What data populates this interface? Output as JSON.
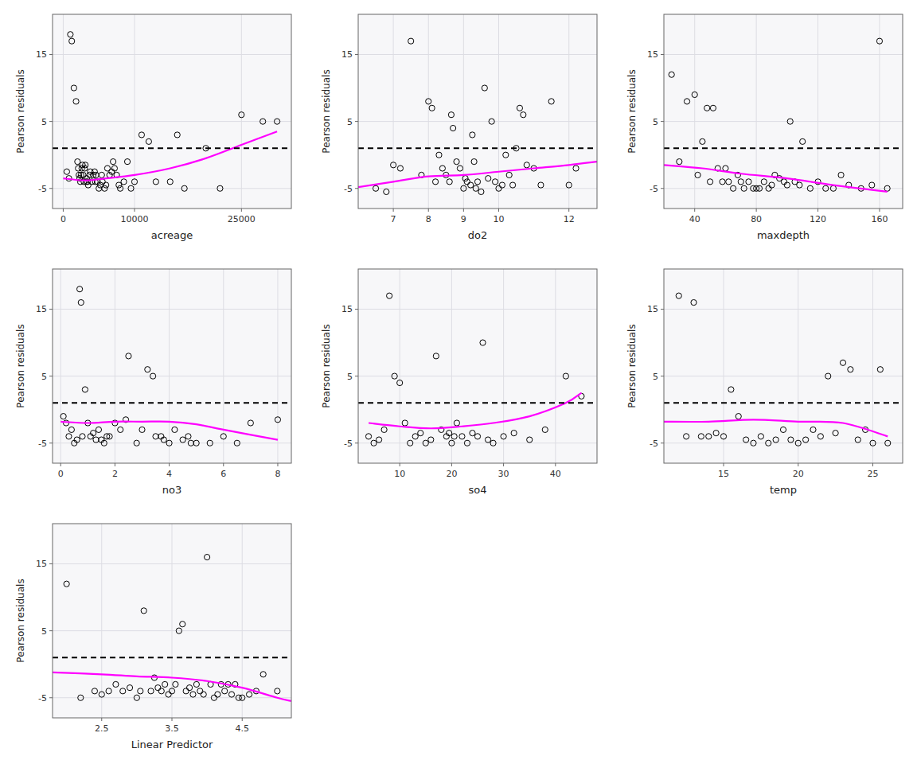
{
  "chart_data": [
    {
      "type": "scatter",
      "xlabel": "acreage",
      "ylabel": "Pearson residuals",
      "xlim": [
        -1500,
        32000
      ],
      "ylim": [
        -8,
        21
      ],
      "xticks": [
        0,
        10000,
        25000
      ],
      "yticks": [
        -5,
        5,
        15
      ],
      "grid": true,
      "series": [
        {
          "type": "scatter",
          "marker": "circle-open",
          "color": "black",
          "x": [
            500,
            800,
            1000,
            1200,
            1500,
            1800,
            2000,
            2100,
            2200,
            2300,
            2400,
            2500,
            2600,
            2700,
            2800,
            2900,
            3000,
            3100,
            3200,
            3300,
            3400,
            3500,
            3700,
            3800,
            4000,
            4200,
            4400,
            4500,
            4600,
            4800,
            5000,
            5200,
            5400,
            5500,
            5800,
            6000,
            6200,
            6500,
            6800,
            7000,
            7200,
            7500,
            7800,
            8000,
            8500,
            9000,
            9500,
            10000,
            11000,
            12000,
            13000,
            15000,
            16000,
            17000,
            20000,
            22000,
            25000,
            28000,
            30000
          ],
          "values": [
            -2.5,
            -3.5,
            18,
            17,
            10,
            8,
            -1,
            -2,
            -3,
            -3.5,
            -4,
            -3,
            -2,
            -1.5,
            -3,
            -4,
            -2,
            -1.5,
            -4,
            -3.5,
            -4,
            -4.5,
            -3,
            -2.5,
            -4,
            -3,
            -2.5,
            -4,
            -3,
            -4,
            -5,
            -4.5,
            -3,
            -4,
            -5,
            -4.5,
            -2,
            -3,
            -2.5,
            -1,
            -2,
            -3,
            -4.5,
            -5,
            -4,
            -1,
            -5,
            -4,
            3,
            2,
            -4,
            -4,
            3,
            -5,
            1,
            -5,
            6,
            5,
            5
          ]
        },
        {
          "type": "line",
          "line_style": "solid",
          "color": "#FF00FF",
          "x": [
            0,
            3000,
            6000,
            10000,
            15000,
            20000,
            25000,
            30000
          ],
          "values": [
            -3.5,
            -3.8,
            -3.5,
            -3.0,
            -2.0,
            -0.5,
            1.5,
            3.5
          ]
        },
        {
          "type": "hline",
          "line_style": "dashed",
          "color": "black",
          "values": [
            1.0
          ]
        }
      ]
    },
    {
      "type": "scatter",
      "xlabel": "do2",
      "ylabel": "Pearson residuals",
      "xlim": [
        6.0,
        12.8
      ],
      "ylim": [
        -8,
        21
      ],
      "xticks": [
        7,
        8,
        9,
        10,
        12
      ],
      "yticks": [
        -5,
        5,
        15
      ],
      "grid": true,
      "series": [
        {
          "type": "scatter",
          "marker": "circle-open",
          "color": "black",
          "x": [
            6.5,
            6.8,
            7.0,
            7.2,
            7.5,
            7.8,
            8.0,
            8.1,
            8.2,
            8.3,
            8.4,
            8.5,
            8.6,
            8.65,
            8.7,
            8.8,
            8.9,
            9.0,
            9.05,
            9.1,
            9.2,
            9.25,
            9.3,
            9.35,
            9.4,
            9.5,
            9.6,
            9.7,
            9.8,
            9.9,
            10.0,
            10.1,
            10.2,
            10.3,
            10.4,
            10.5,
            10.6,
            10.7,
            10.8,
            11.0,
            11.2,
            11.5,
            12.0,
            12.2
          ],
          "values": [
            -5,
            -5.5,
            -1.5,
            -2,
            17,
            -3,
            8,
            7,
            -4,
            0,
            -2,
            -3,
            -4,
            6,
            4,
            -1,
            -2,
            -5,
            -3.5,
            -4,
            -4.5,
            3,
            -1,
            -5,
            -4,
            -5.5,
            10,
            -3.5,
            5,
            -4,
            -5,
            -4.5,
            0,
            -3,
            -4.5,
            1,
            7,
            6,
            -1.5,
            -2,
            -4.5,
            8,
            -4.5,
            -2
          ]
        },
        {
          "type": "line",
          "line_style": "solid",
          "color": "#FF00FF",
          "x": [
            6.0,
            7.0,
            8.0,
            9.0,
            10.0,
            11.0,
            12.0,
            12.8
          ],
          "values": [
            -4.8,
            -4.0,
            -3.2,
            -3.0,
            -2.5,
            -2.0,
            -1.5,
            -1.0
          ]
        },
        {
          "type": "hline",
          "line_style": "dashed",
          "color": "black",
          "values": [
            1.0
          ]
        }
      ]
    },
    {
      "type": "scatter",
      "xlabel": "maxdepth",
      "ylabel": "Pearson residuals",
      "xlim": [
        20,
        175
      ],
      "ylim": [
        -8,
        21
      ],
      "xticks": [
        40,
        80,
        120,
        160
      ],
      "yticks": [
        -5,
        5,
        15
      ],
      "grid": true,
      "series": [
        {
          "type": "scatter",
          "marker": "circle-open",
          "color": "black",
          "x": [
            25,
            30,
            35,
            40,
            42,
            45,
            48,
            50,
            52,
            55,
            58,
            60,
            62,
            65,
            68,
            70,
            72,
            75,
            78,
            80,
            82,
            85,
            88,
            90,
            92,
            95,
            98,
            100,
            102,
            105,
            108,
            110,
            115,
            120,
            125,
            130,
            135,
            140,
            148,
            155,
            160,
            165
          ],
          "values": [
            12,
            -1,
            8,
            9,
            -3,
            2,
            7,
            -4,
            7,
            -2,
            -4,
            -2,
            -4,
            -5,
            -3,
            -4,
            -5,
            -4,
            -5,
            -5,
            -5,
            -4,
            -5,
            -4.5,
            -3,
            -3.5,
            -4,
            -4.5,
            5,
            -4,
            -4.5,
            2,
            -5,
            -4,
            -5,
            -5,
            -3,
            -4.5,
            -5,
            -4.5,
            17,
            -5
          ]
        },
        {
          "type": "line",
          "line_style": "solid",
          "color": "#FF00FF",
          "x": [
            20,
            45,
            70,
            100,
            130,
            165
          ],
          "values": [
            -1.5,
            -2.0,
            -2.8,
            -3.5,
            -4.5,
            -5.5
          ]
        },
        {
          "type": "hline",
          "line_style": "dashed",
          "color": "black",
          "values": [
            1.0
          ]
        }
      ]
    },
    {
      "type": "scatter",
      "xlabel": "no3",
      "ylabel": "Pearson residuals",
      "xlim": [
        -0.3,
        8.5
      ],
      "ylim": [
        -8,
        21
      ],
      "xticks": [
        0,
        2,
        4,
        6,
        8
      ],
      "yticks": [
        -5,
        5,
        15
      ],
      "grid": true,
      "series": [
        {
          "type": "scatter",
          "marker": "circle-open",
          "color": "black",
          "x": [
            0.1,
            0.2,
            0.3,
            0.4,
            0.5,
            0.6,
            0.7,
            0.75,
            0.8,
            0.9,
            1.0,
            1.1,
            1.2,
            1.3,
            1.4,
            1.5,
            1.6,
            1.7,
            1.8,
            2.0,
            2.2,
            2.4,
            2.5,
            2.8,
            3.0,
            3.2,
            3.4,
            3.5,
            3.7,
            3.8,
            4.0,
            4.2,
            4.5,
            4.7,
            4.8,
            5.0,
            5.5,
            6.0,
            6.5,
            7.0,
            8.0
          ],
          "values": [
            -1,
            -2,
            -4,
            -3,
            -5,
            -4.5,
            18,
            16,
            -4,
            3,
            -2,
            -4,
            -3.5,
            -4.5,
            -3,
            -4.5,
            -5,
            -4,
            -4,
            -2,
            -3,
            -1.5,
            8,
            -5,
            -3,
            6,
            5,
            -4,
            -4,
            -4.5,
            -5,
            -3,
            -4.5,
            -4,
            -5,
            -5,
            -5,
            -4,
            -5,
            -2,
            -1.5
          ]
        },
        {
          "type": "line",
          "line_style": "solid",
          "color": "#FF00FF",
          "x": [
            0,
            1,
            2,
            3,
            4,
            5,
            6,
            8
          ],
          "values": [
            -1.8,
            -2.0,
            -1.8,
            -1.8,
            -1.8,
            -2.2,
            -3.0,
            -4.5
          ]
        },
        {
          "type": "hline",
          "line_style": "dashed",
          "color": "black",
          "values": [
            1.0
          ]
        }
      ]
    },
    {
      "type": "scatter",
      "xlabel": "so4",
      "ylabel": "Pearson residuals",
      "xlim": [
        2,
        48
      ],
      "ylim": [
        -8,
        21
      ],
      "xticks": [
        10,
        20,
        30,
        40
      ],
      "yticks": [
        -5,
        5,
        15
      ],
      "grid": true,
      "series": [
        {
          "type": "scatter",
          "marker": "circle-open",
          "color": "black",
          "x": [
            4,
            5,
            6,
            7,
            8,
            9,
            10,
            11,
            12,
            13,
            14,
            15,
            16,
            17,
            18,
            19,
            19.5,
            20,
            20.5,
            21,
            22,
            23,
            24,
            25,
            26,
            27,
            28,
            30,
            32,
            35,
            38,
            42,
            45
          ],
          "values": [
            -4,
            -5,
            -4.5,
            -3,
            17,
            5,
            4,
            -2,
            -5,
            -4,
            -3.5,
            -5,
            -4.5,
            8,
            -3,
            -4,
            -3.5,
            -5,
            -4,
            -2,
            -4,
            -5,
            -3.5,
            -4,
            10,
            -4.5,
            -5,
            -4,
            -3.5,
            -4.5,
            -3,
            5,
            2
          ]
        },
        {
          "type": "line",
          "line_style": "solid",
          "color": "#FF00FF",
          "x": [
            4,
            10,
            16,
            22,
            28,
            35,
            42,
            45
          ],
          "values": [
            -2.0,
            -2.5,
            -2.8,
            -2.5,
            -2.0,
            -1.0,
            1.0,
            2.5
          ]
        },
        {
          "type": "hline",
          "line_style": "dashed",
          "color": "black",
          "values": [
            1.0
          ]
        }
      ]
    },
    {
      "type": "scatter",
      "xlabel": "temp",
      "ylabel": "Pearson residuals",
      "xlim": [
        11,
        27
      ],
      "ylim": [
        -8,
        21
      ],
      "xticks": [
        15,
        20,
        25
      ],
      "yticks": [
        -5,
        5,
        15
      ],
      "grid": true,
      "series": [
        {
          "type": "scatter",
          "marker": "circle-open",
          "color": "black",
          "x": [
            12,
            12.5,
            13,
            13.5,
            14,
            14.5,
            15,
            15.5,
            16,
            16.5,
            17,
            17.5,
            18,
            18.5,
            19,
            19.5,
            20,
            20.5,
            21,
            21.5,
            22,
            22.5,
            23,
            23.5,
            24,
            24.5,
            25,
            25.5,
            26
          ],
          "values": [
            17,
            -4,
            16,
            -4,
            -4,
            -3.5,
            -4,
            3,
            -1,
            -4.5,
            -5,
            -4,
            -5,
            -4.5,
            -3,
            -4.5,
            -5,
            -4.5,
            -3,
            -4,
            5,
            -3.5,
            7,
            6,
            -4.5,
            -3,
            -5,
            6,
            -5
          ]
        },
        {
          "type": "line",
          "line_style": "solid",
          "color": "#FF00FF",
          "x": [
            11,
            14,
            17,
            20,
            23,
            26
          ],
          "values": [
            -1.8,
            -1.8,
            -1.5,
            -1.8,
            -2.0,
            -4.0
          ]
        },
        {
          "type": "hline",
          "line_style": "dashed",
          "color": "black",
          "values": [
            1.0
          ]
        }
      ]
    },
    {
      "type": "scatter",
      "xlabel": "Linear Predictor",
      "ylabel": "Pearson residuals",
      "xlim": [
        1.8,
        5.2
      ],
      "ylim": [
        -8,
        21
      ],
      "xticks": [
        2.5,
        3.5,
        4.5
      ],
      "yticks": [
        -5,
        5,
        15
      ],
      "grid": true,
      "series": [
        {
          "type": "scatter",
          "marker": "circle-open",
          "color": "black",
          "x": [
            2.0,
            2.2,
            2.4,
            2.5,
            2.6,
            2.7,
            2.8,
            2.9,
            3.0,
            3.05,
            3.1,
            3.2,
            3.25,
            3.3,
            3.35,
            3.4,
            3.45,
            3.5,
            3.55,
            3.6,
            3.65,
            3.7,
            3.75,
            3.8,
            3.85,
            3.9,
            3.95,
            4.0,
            4.05,
            4.1,
            4.15,
            4.2,
            4.25,
            4.3,
            4.35,
            4.4,
            4.45,
            4.5,
            4.6,
            4.7,
            4.8,
            5.0
          ],
          "values": [
            12,
            -5,
            -4,
            -4.5,
            -4,
            -3,
            -4,
            -3.5,
            -5,
            -4,
            8,
            -4,
            -2,
            -3.5,
            -4,
            -3,
            -4.5,
            -4,
            -3,
            5,
            6,
            -4,
            -3.5,
            -4.5,
            -3,
            -4,
            -4.5,
            16,
            -3,
            -5,
            -4.5,
            -3,
            -4,
            -3,
            -4.5,
            -3,
            -5,
            -5,
            -4.5,
            -4,
            -1.5,
            -4
          ]
        },
        {
          "type": "line",
          "line_style": "solid",
          "color": "#FF00FF",
          "x": [
            1.8,
            2.5,
            3.0,
            3.5,
            4.0,
            4.5,
            5.0,
            5.2
          ],
          "values": [
            -1.2,
            -1.5,
            -1.8,
            -2.0,
            -2.5,
            -3.5,
            -5.0,
            -5.5
          ]
        },
        {
          "type": "hline",
          "line_style": "dashed",
          "color": "black",
          "values": [
            1.0
          ]
        }
      ]
    }
  ]
}
